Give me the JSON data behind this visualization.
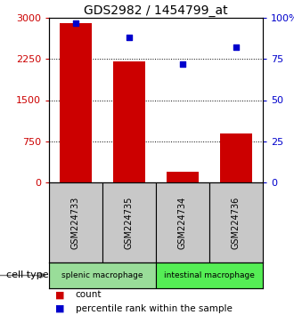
{
  "title": "GDS2982 / 1454799_at",
  "samples": [
    "GSM224733",
    "GSM224735",
    "GSM224734",
    "GSM224736"
  ],
  "counts": [
    2900,
    2200,
    200,
    900
  ],
  "percentiles": [
    97,
    88,
    72,
    82
  ],
  "ylim_left": [
    0,
    3000
  ],
  "ylim_right": [
    0,
    100
  ],
  "yticks_left": [
    0,
    750,
    1500,
    2250,
    3000
  ],
  "yticks_right": [
    0,
    25,
    50,
    75,
    100
  ],
  "bar_color": "#cc0000",
  "scatter_color": "#0000cc",
  "groups": [
    {
      "label": "splenic macrophage",
      "indices": [
        0,
        1
      ],
      "color": "#99dd99"
    },
    {
      "label": "intestinal macrophage",
      "indices": [
        2,
        3
      ],
      "color": "#55ee55"
    }
  ],
  "sample_box_color": "#c8c8c8",
  "cell_type_label": "cell type",
  "legend_count_color": "#cc0000",
  "legend_pct_color": "#0000cc",
  "legend_count_label": "count",
  "legend_pct_label": "percentile rank within the sample",
  "left_tick_color": "#cc0000",
  "right_tick_color": "#0000cc"
}
